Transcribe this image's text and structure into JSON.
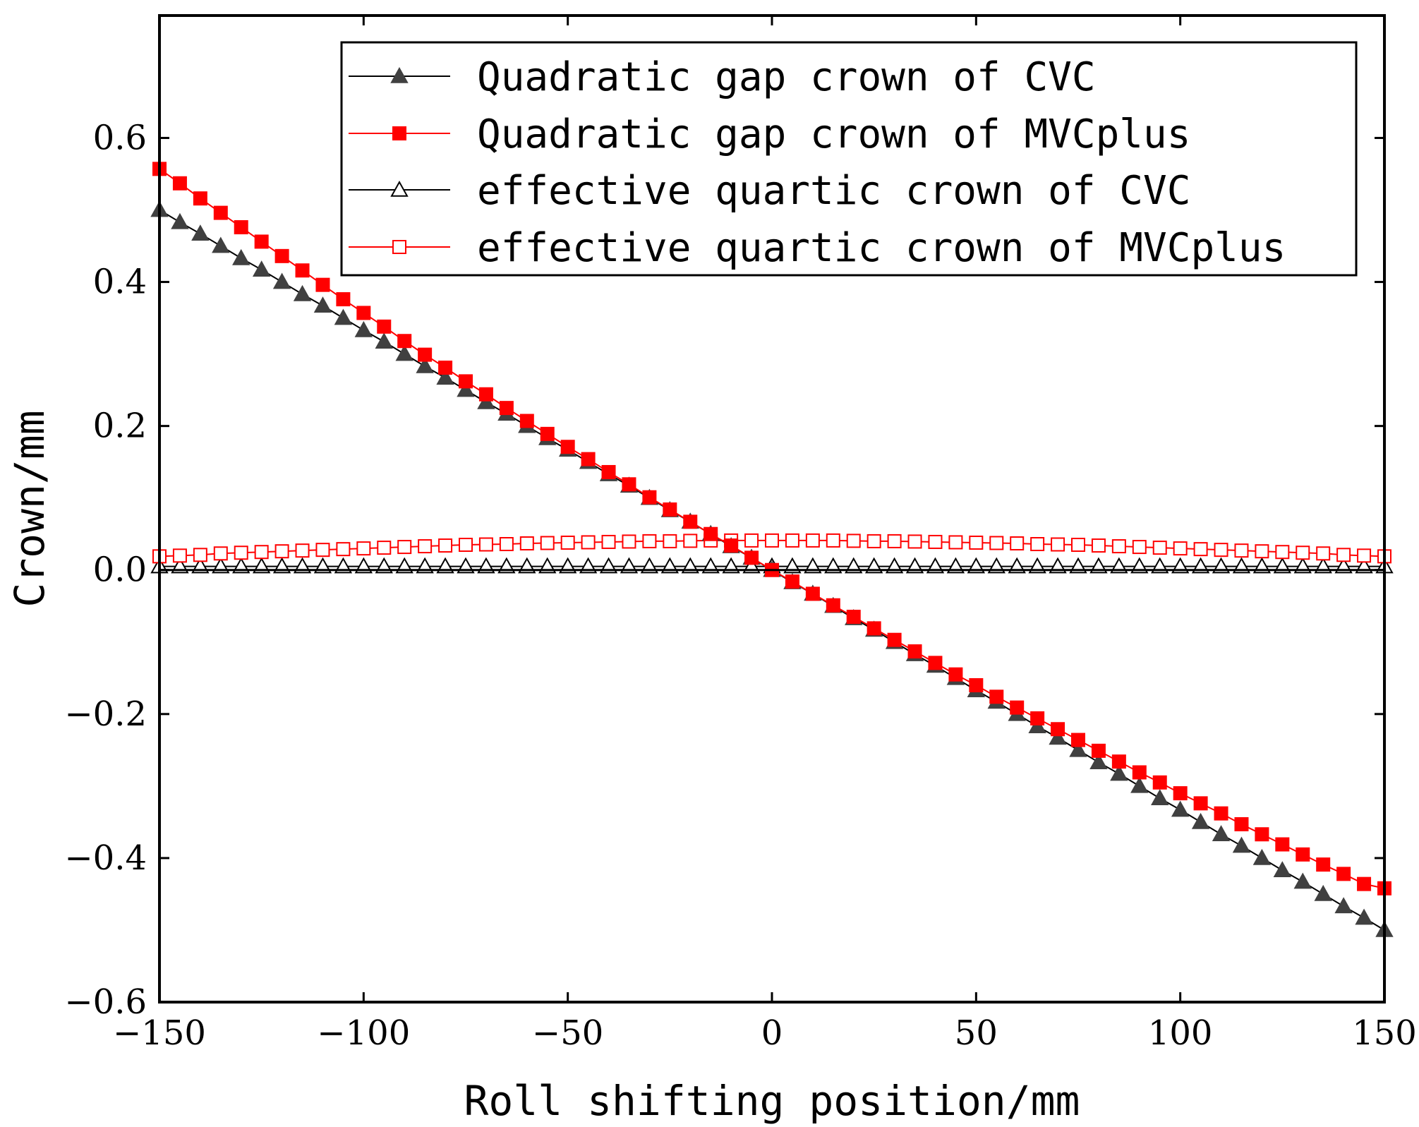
{
  "chart_data": {
    "type": "line",
    "title": "",
    "xlabel": "Roll shifting position/mm",
    "ylabel": "Crown/mm",
    "xlim": [
      -150,
      150
    ],
    "ylim": [
      -0.6,
      0.77
    ],
    "xticks": [
      -150,
      -100,
      -50,
      0,
      50,
      100,
      150
    ],
    "xtick_labels": [
      "−150",
      "−100",
      "−50",
      "0",
      "50",
      "100",
      "150"
    ],
    "yticks": [
      -0.6,
      -0.4,
      -0.2,
      0.0,
      0.2,
      0.4,
      0.6
    ],
    "ytick_labels": [
      "−0.6",
      "−0.4",
      "−0.2",
      "0.0",
      "0.2",
      "0.4",
      "0.6"
    ],
    "grid": false,
    "legend_position": "top-right",
    "x": [
      -150,
      -145,
      -140,
      -135,
      -130,
      -125,
      -120,
      -115,
      -110,
      -105,
      -100,
      -95,
      -90,
      -85,
      -80,
      -75,
      -70,
      -65,
      -60,
      -55,
      -50,
      -45,
      -40,
      -35,
      -30,
      -25,
      -20,
      -15,
      -10,
      -5,
      0,
      5,
      10,
      15,
      20,
      25,
      30,
      35,
      40,
      45,
      50,
      55,
      60,
      65,
      70,
      75,
      80,
      85,
      90,
      95,
      100,
      105,
      110,
      115,
      120,
      125,
      130,
      135,
      140,
      145,
      150
    ],
    "series": [
      {
        "name": "Quadratic gap crown of CVC",
        "color": "#000000",
        "marker_fill": "#404040",
        "marker": "filled-triangle",
        "values": [
          0.5,
          0.483,
          0.467,
          0.45,
          0.433,
          0.417,
          0.4,
          0.383,
          0.367,
          0.35,
          0.333,
          0.317,
          0.3,
          0.283,
          0.267,
          0.25,
          0.233,
          0.217,
          0.2,
          0.183,
          0.167,
          0.15,
          0.133,
          0.117,
          0.1,
          0.083,
          0.067,
          0.05,
          0.033,
          0.017,
          0.0,
          -0.017,
          -0.033,
          -0.05,
          -0.067,
          -0.083,
          -0.1,
          -0.117,
          -0.133,
          -0.15,
          -0.167,
          -0.183,
          -0.2,
          -0.217,
          -0.233,
          -0.25,
          -0.267,
          -0.283,
          -0.3,
          -0.317,
          -0.333,
          -0.35,
          -0.367,
          -0.383,
          -0.4,
          -0.417,
          -0.433,
          -0.45,
          -0.467,
          -0.483,
          -0.5
        ]
      },
      {
        "name": "Quadratic gap crown of MVCplus",
        "color": "#ff0000",
        "marker_fill": "#ff0000",
        "marker": "filled-square",
        "values": [
          0.557,
          0.537,
          0.516,
          0.496,
          0.476,
          0.456,
          0.436,
          0.416,
          0.396,
          0.376,
          0.357,
          0.338,
          0.318,
          0.299,
          0.281,
          0.262,
          0.244,
          0.225,
          0.207,
          0.189,
          0.171,
          0.154,
          0.136,
          0.119,
          0.101,
          0.084,
          0.067,
          0.05,
          0.034,
          0.017,
          0.0,
          -0.016,
          -0.033,
          -0.049,
          -0.065,
          -0.081,
          -0.097,
          -0.113,
          -0.129,
          -0.145,
          -0.16,
          -0.176,
          -0.191,
          -0.206,
          -0.221,
          -0.236,
          -0.251,
          -0.266,
          -0.281,
          -0.295,
          -0.31,
          -0.324,
          -0.338,
          -0.353,
          -0.367,
          -0.381,
          -0.395,
          -0.409,
          -0.422,
          -0.436,
          -0.442
        ]
      },
      {
        "name": "effective quartic crown of CVC",
        "color": "#000000",
        "marker_fill": "#ffffff",
        "marker": "open-triangle",
        "values": [
          0.005,
          0.005,
          0.005,
          0.005,
          0.005,
          0.005,
          0.005,
          0.005,
          0.005,
          0.005,
          0.005,
          0.005,
          0.005,
          0.005,
          0.005,
          0.005,
          0.005,
          0.005,
          0.005,
          0.005,
          0.005,
          0.005,
          0.005,
          0.005,
          0.005,
          0.005,
          0.005,
          0.005,
          0.005,
          0.005,
          0.005,
          0.005,
          0.005,
          0.005,
          0.005,
          0.005,
          0.005,
          0.005,
          0.005,
          0.005,
          0.005,
          0.005,
          0.005,
          0.005,
          0.005,
          0.005,
          0.005,
          0.005,
          0.005,
          0.005,
          0.005,
          0.005,
          0.005,
          0.005,
          0.005,
          0.005,
          0.005,
          0.005,
          0.005,
          0.005,
          0.005
        ]
      },
      {
        "name": "effective quartic crown of MVCplus",
        "color": "#ff0000",
        "marker_fill": "#ffffff",
        "marker": "open-square",
        "values": [
          0.019,
          0.02,
          0.021,
          0.023,
          0.024,
          0.025,
          0.026,
          0.027,
          0.028,
          0.029,
          0.03,
          0.031,
          0.032,
          0.033,
          0.034,
          0.035,
          0.0355,
          0.036,
          0.037,
          0.0375,
          0.038,
          0.0385,
          0.039,
          0.0395,
          0.04,
          0.04,
          0.0405,
          0.041,
          0.041,
          0.041,
          0.041,
          0.041,
          0.041,
          0.041,
          0.0405,
          0.04,
          0.04,
          0.0395,
          0.039,
          0.0385,
          0.038,
          0.0375,
          0.037,
          0.036,
          0.0355,
          0.035,
          0.034,
          0.033,
          0.032,
          0.031,
          0.03,
          0.029,
          0.028,
          0.027,
          0.026,
          0.025,
          0.024,
          0.023,
          0.021,
          0.02,
          0.019
        ]
      }
    ]
  }
}
